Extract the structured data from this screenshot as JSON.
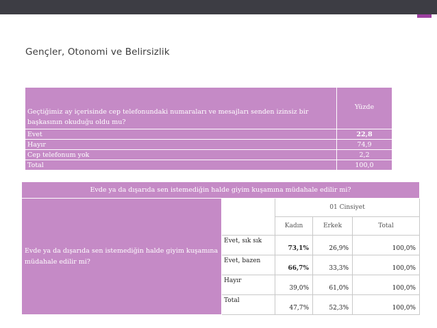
{
  "title": "Gençler, Otonomi ve Belirsizlik",
  "table1": {
    "question": "Geçtiğimiz ay içerisinde cep telefonundaki numaraları ve mesajları senden izinsiz bir başkasının okuduğu oldu mu?",
    "column": "Yüzde",
    "rows": [
      {
        "label": "Evet",
        "value": "22,8"
      },
      {
        "label": "Hayır",
        "value": "74,9"
      },
      {
        "label": "Cep telefonum yok",
        "value": "2,2"
      },
      {
        "label": "Total",
        "value": "100,0"
      }
    ]
  },
  "table2": {
    "caption": "Evde ya da dışarıda sen istemediğin halde giyim kuşamına müdahale edilir mi?",
    "row_label": "Evde ya da dışarıda sen istemediğin halde giyim kuşamına müdahale edilir mi?",
    "group_header": "01 Cinsiyet",
    "columns": [
      "Kadın",
      "Erkek",
      "Total"
    ],
    "rows": [
      {
        "label": "Evet, sık sık",
        "values": [
          "73,1%",
          "26,9%",
          "100,0%"
        ]
      },
      {
        "label": "Evet, bazen",
        "values": [
          "66,7%",
          "33,3%",
          "100,0%"
        ]
      },
      {
        "label": "Hayır",
        "values": [
          "39,0%",
          "61,0%",
          "100,0%"
        ]
      },
      {
        "label": "Total",
        "values": [
          "47,7%",
          "52,3%",
          "100,0%"
        ]
      }
    ]
  }
}
